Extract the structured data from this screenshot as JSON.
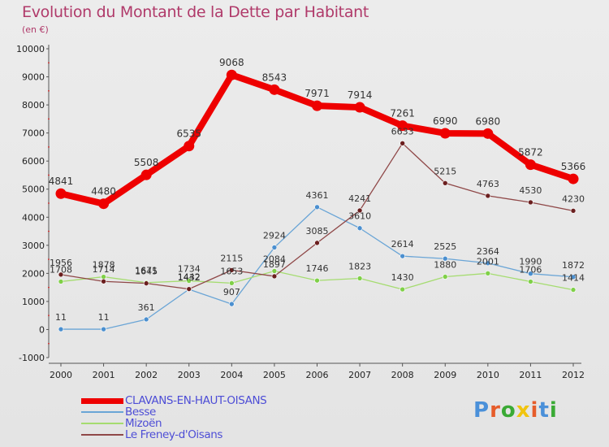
{
  "title": "Evolution du Montant de la Dette par Habitant",
  "subtitle": "(en €)",
  "logo": {
    "text": "Proxiti",
    "colors": [
      "#4a90d9",
      "#e65c2a",
      "#3aaa35",
      "#f1c40f",
      "#e65c2a",
      "#4a90d9",
      "#3aaa35"
    ]
  },
  "chart_data": {
    "type": "line",
    "title": "Evolution du Montant de la Dette par Habitant",
    "subtitle": "(en €)",
    "xlabel": "",
    "ylabel": "",
    "categories": [
      "2000",
      "2001",
      "2002",
      "2003",
      "2004",
      "2005",
      "2006",
      "2007",
      "2008",
      "2009",
      "2010",
      "2011",
      "2012"
    ],
    "ylim": [
      -1000,
      10000
    ],
    "yticks": [
      "-1000",
      "0",
      "1000",
      "2000",
      "3000",
      "4000",
      "5000",
      "6000",
      "7000",
      "8000",
      "9000",
      "10000"
    ],
    "grid": false,
    "legend_position": "bottom-left",
    "series": [
      {
        "name": "CLAVANS-EN-HAUT-OISANS",
        "color": "#ee0000",
        "marker": "#ee0000",
        "values": [
          4841,
          4480,
          5508,
          6535,
          9068,
          8543,
          7971,
          7914,
          7261,
          6990,
          6980,
          5872,
          5366
        ],
        "labels": [
          "4841",
          "4480",
          "5508",
          "6535",
          "9068",
          "8543",
          "7971",
          "7914",
          "7261",
          "6990",
          "6980",
          "5872",
          "5366"
        ]
      },
      {
        "name": "Besse",
        "color": "#6aa5d6",
        "marker": "#4b8fcf",
        "values": [
          11,
          11,
          361,
          1432,
          907,
          2924,
          4361,
          3610,
          2614,
          2525,
          2364,
          1990,
          1872
        ],
        "labels": [
          "11",
          "11",
          "361",
          "1432",
          "907",
          "2924",
          "4361",
          "3610",
          "2614",
          "2525",
          "2364",
          "1990",
          "1872"
        ]
      },
      {
        "name": "Mizoën",
        "color": "#a5dc70",
        "marker": "#7fd048",
        "values": [
          1708,
          1878,
          1671,
          1734,
          1653,
          2084,
          1746,
          1823,
          1430,
          1880,
          2001,
          1706,
          1414
        ],
        "labels": [
          "1708",
          "1878",
          "1671",
          "1734",
          "1653",
          "2084",
          "1746",
          "1823",
          "1430",
          "1880",
          "2001",
          "1706",
          "1414"
        ]
      },
      {
        "name": "Le Freney-d'Oisans",
        "color": "#8f4848",
        "marker": "#6b1f1f",
        "values": [
          1956,
          1714,
          1645,
          1442,
          2115,
          1897,
          3085,
          4241,
          6633,
          5215,
          4763,
          4530,
          4230
        ],
        "labels": [
          "1956",
          "1714",
          "1645",
          "1442",
          "2115",
          "1897",
          "3085",
          "4241",
          "6633",
          "5215",
          "4763",
          "4530",
          "4230"
        ]
      }
    ]
  }
}
